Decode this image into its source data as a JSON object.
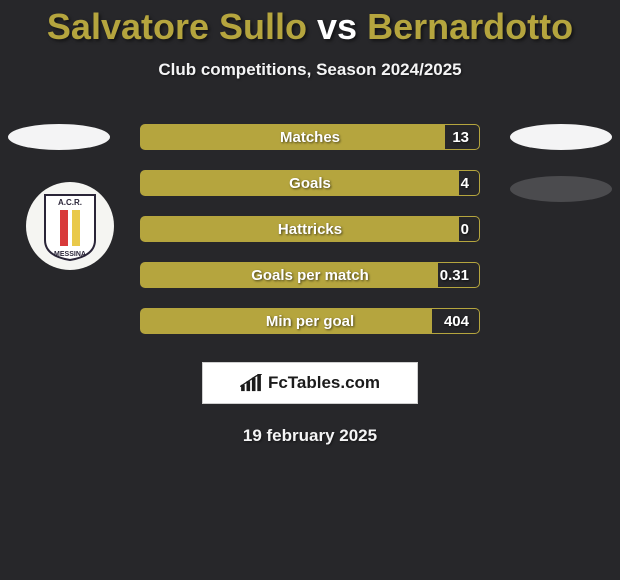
{
  "title": {
    "player1": "Salvatore Sullo",
    "vs": "vs",
    "player2": "Bernardotto",
    "player1_color": "#b5a53e",
    "vs_color": "#ffffff",
    "player2_color": "#b5a53e"
  },
  "subtitle": "Club competitions, Season 2024/2025",
  "colors": {
    "background": "#27272a",
    "bar_fill_left": "#b5a53e",
    "bar_fill_right": "#27272a",
    "bar_border": "#b5a53e",
    "oval_light": "#f4f4f5",
    "oval_dark": "#4b4b4e",
    "text_light": "#ffffff"
  },
  "stats": [
    {
      "label": "Matches",
      "value": "13",
      "right_pct": 10
    },
    {
      "label": "Goals",
      "value": "4",
      "right_pct": 6
    },
    {
      "label": "Hattricks",
      "value": "0",
      "right_pct": 6
    },
    {
      "label": "Goals per match",
      "value": "0.31",
      "right_pct": 12
    },
    {
      "label": "Min per goal",
      "value": "404",
      "right_pct": 14
    }
  ],
  "club_logo": {
    "name": "acr-messina",
    "arc_text": "A.C.R.",
    "red": "#d83a3a",
    "yellow": "#e9c94a"
  },
  "brand": "FcTables.com",
  "date": "19 february 2025"
}
